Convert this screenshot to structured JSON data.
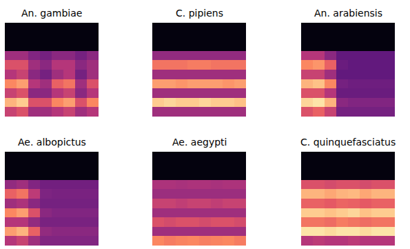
{
  "chart_data": [
    {
      "type": "heatmap",
      "title": "An. gambiae",
      "tick_labels": false,
      "zlim": [
        0,
        1
      ],
      "cells": [
        [
          0.55,
          0.6,
          0.45,
          0.45,
          0.5,
          0.55,
          0.45,
          0.5
        ],
        [
          0.85,
          0.9,
          0.6,
          0.6,
          0.75,
          0.8,
          0.6,
          0.75
        ],
        [
          0.55,
          0.6,
          0.4,
          0.4,
          0.5,
          0.55,
          0.4,
          0.5
        ],
        [
          0.75,
          0.8,
          0.5,
          0.45,
          0.65,
          0.7,
          0.45,
          0.6
        ],
        [
          0.5,
          0.55,
          0.4,
          0.35,
          0.45,
          0.5,
          0.35,
          0.45
        ],
        [
          0.6,
          0.6,
          0.45,
          0.4,
          0.5,
          0.5,
          0.4,
          0.45
        ],
        [
          0.45,
          0.45,
          0.38,
          0.35,
          0.4,
          0.4,
          0.35,
          0.4
        ],
        [
          0.02,
          0.02,
          0.02,
          0.02,
          0.02,
          0.02,
          0.02,
          0.02
        ],
        [
          0.02,
          0.02,
          0.02,
          0.02,
          0.02,
          0.02,
          0.02,
          0.02
        ],
        [
          0.02,
          0.02,
          0.02,
          0.02,
          0.02,
          0.02,
          0.02,
          0.02
        ]
      ]
    },
    {
      "type": "heatmap",
      "title": "C. pipiens",
      "tick_labels": false,
      "zlim": [
        0,
        1
      ],
      "cells": [
        [
          0.45,
          0.45,
          0.45,
          0.45,
          0.45,
          0.45,
          0.45,
          0.45
        ],
        [
          0.9,
          0.92,
          0.9,
          0.9,
          0.92,
          0.9,
          0.9,
          0.88
        ],
        [
          0.45,
          0.45,
          0.45,
          0.45,
          0.45,
          0.45,
          0.45,
          0.45
        ],
        [
          0.8,
          0.8,
          0.78,
          0.8,
          0.8,
          0.8,
          0.78,
          0.8
        ],
        [
          0.45,
          0.45,
          0.45,
          0.45,
          0.45,
          0.45,
          0.45,
          0.45
        ],
        [
          0.7,
          0.7,
          0.7,
          0.72,
          0.72,
          0.7,
          0.7,
          0.7
        ],
        [
          0.42,
          0.42,
          0.42,
          0.42,
          0.42,
          0.42,
          0.42,
          0.42
        ],
        [
          0.02,
          0.02,
          0.02,
          0.02,
          0.02,
          0.02,
          0.02,
          0.02
        ],
        [
          0.02,
          0.02,
          0.02,
          0.02,
          0.02,
          0.02,
          0.02,
          0.02
        ],
        [
          0.02,
          0.02,
          0.02,
          0.02,
          0.02,
          0.02,
          0.02,
          0.02
        ]
      ]
    },
    {
      "type": "heatmap",
      "title": "An. arabiensis",
      "tick_labels": false,
      "zlim": [
        0,
        1
      ],
      "cells": [
        [
          0.6,
          0.65,
          0.55,
          0.35,
          0.35,
          0.35,
          0.35,
          0.35
        ],
        [
          0.92,
          0.95,
          0.85,
          0.4,
          0.38,
          0.38,
          0.38,
          0.38
        ],
        [
          0.6,
          0.6,
          0.5,
          0.32,
          0.32,
          0.32,
          0.32,
          0.32
        ],
        [
          0.85,
          0.88,
          0.75,
          0.35,
          0.33,
          0.33,
          0.33,
          0.33
        ],
        [
          0.55,
          0.55,
          0.45,
          0.3,
          0.3,
          0.3,
          0.3,
          0.3
        ],
        [
          0.75,
          0.78,
          0.65,
          0.32,
          0.3,
          0.3,
          0.3,
          0.3
        ],
        [
          0.5,
          0.5,
          0.4,
          0.3,
          0.3,
          0.3,
          0.3,
          0.3
        ],
        [
          0.02,
          0.02,
          0.02,
          0.02,
          0.02,
          0.02,
          0.02,
          0.02
        ],
        [
          0.02,
          0.02,
          0.02,
          0.02,
          0.02,
          0.02,
          0.02,
          0.02
        ],
        [
          0.02,
          0.02,
          0.02,
          0.02,
          0.02,
          0.02,
          0.02,
          0.02
        ]
      ]
    },
    {
      "type": "heatmap",
      "title": "Ae. albopictus",
      "tick_labels": false,
      "zlim": [
        0,
        1
      ],
      "cells": [
        [
          0.5,
          0.55,
          0.45,
          0.38,
          0.38,
          0.38,
          0.38,
          0.38
        ],
        [
          0.8,
          0.85,
          0.65,
          0.42,
          0.4,
          0.4,
          0.4,
          0.4
        ],
        [
          0.5,
          0.5,
          0.42,
          0.36,
          0.36,
          0.36,
          0.36,
          0.36
        ],
        [
          0.75,
          0.8,
          0.6,
          0.4,
          0.38,
          0.38,
          0.38,
          0.38
        ],
        [
          0.45,
          0.48,
          0.4,
          0.35,
          0.35,
          0.35,
          0.35,
          0.35
        ],
        [
          0.65,
          0.7,
          0.52,
          0.37,
          0.36,
          0.36,
          0.36,
          0.36
        ],
        [
          0.42,
          0.45,
          0.38,
          0.34,
          0.34,
          0.34,
          0.34,
          0.34
        ],
        [
          0.02,
          0.02,
          0.02,
          0.02,
          0.02,
          0.02,
          0.02,
          0.02
        ],
        [
          0.02,
          0.02,
          0.02,
          0.02,
          0.02,
          0.02,
          0.02,
          0.02
        ],
        [
          0.02,
          0.02,
          0.02,
          0.02,
          0.02,
          0.02,
          0.02,
          0.02
        ]
      ]
    },
    {
      "type": "heatmap",
      "title": "Ae. aegypti",
      "tick_labels": false,
      "zlim": [
        0,
        1
      ],
      "cells": [
        [
          0.75,
          0.72,
          0.74,
          0.75,
          0.73,
          0.74,
          0.75,
          0.72
        ],
        [
          0.45,
          0.45,
          0.45,
          0.45,
          0.45,
          0.45,
          0.45,
          0.45
        ],
        [
          0.6,
          0.58,
          0.6,
          0.6,
          0.58,
          0.6,
          0.6,
          0.58
        ],
        [
          0.45,
          0.45,
          0.45,
          0.45,
          0.45,
          0.45,
          0.45,
          0.45
        ],
        [
          0.55,
          0.55,
          0.53,
          0.55,
          0.55,
          0.53,
          0.55,
          0.55
        ],
        [
          0.44,
          0.44,
          0.44,
          0.44,
          0.44,
          0.44,
          0.44,
          0.44
        ],
        [
          0.48,
          0.48,
          0.47,
          0.48,
          0.48,
          0.47,
          0.48,
          0.48
        ],
        [
          0.02,
          0.02,
          0.02,
          0.02,
          0.02,
          0.02,
          0.02,
          0.02
        ],
        [
          0.02,
          0.02,
          0.02,
          0.02,
          0.02,
          0.02,
          0.02,
          0.02
        ],
        [
          0.02,
          0.02,
          0.02,
          0.02,
          0.02,
          0.02,
          0.02,
          0.02
        ]
      ]
    },
    {
      "type": "heatmap",
      "title": "C. quinquefasciatus",
      "tick_labels": false,
      "zlim": [
        0,
        1
      ],
      "cells": [
        [
          0.5,
          0.52,
          0.5,
          0.5,
          0.52,
          0.5,
          0.5,
          0.5
        ],
        [
          0.95,
          0.95,
          0.93,
          0.95,
          0.95,
          0.93,
          0.95,
          0.95
        ],
        [
          0.7,
          0.7,
          0.68,
          0.72,
          0.7,
          0.68,
          0.7,
          0.7
        ],
        [
          0.9,
          0.9,
          0.88,
          0.9,
          0.92,
          0.88,
          0.9,
          0.9
        ],
        [
          0.65,
          0.65,
          0.63,
          0.66,
          0.65,
          0.63,
          0.65,
          0.65
        ],
        [
          0.85,
          0.85,
          0.82,
          0.85,
          0.86,
          0.82,
          0.85,
          0.85
        ],
        [
          0.6,
          0.6,
          0.58,
          0.6,
          0.6,
          0.58,
          0.6,
          0.6
        ],
        [
          0.02,
          0.02,
          0.02,
          0.02,
          0.02,
          0.02,
          0.02,
          0.02
        ],
        [
          0.02,
          0.02,
          0.02,
          0.02,
          0.02,
          0.02,
          0.02,
          0.02
        ],
        [
          0.02,
          0.02,
          0.02,
          0.02,
          0.02,
          0.02,
          0.02,
          0.02
        ]
      ]
    }
  ]
}
